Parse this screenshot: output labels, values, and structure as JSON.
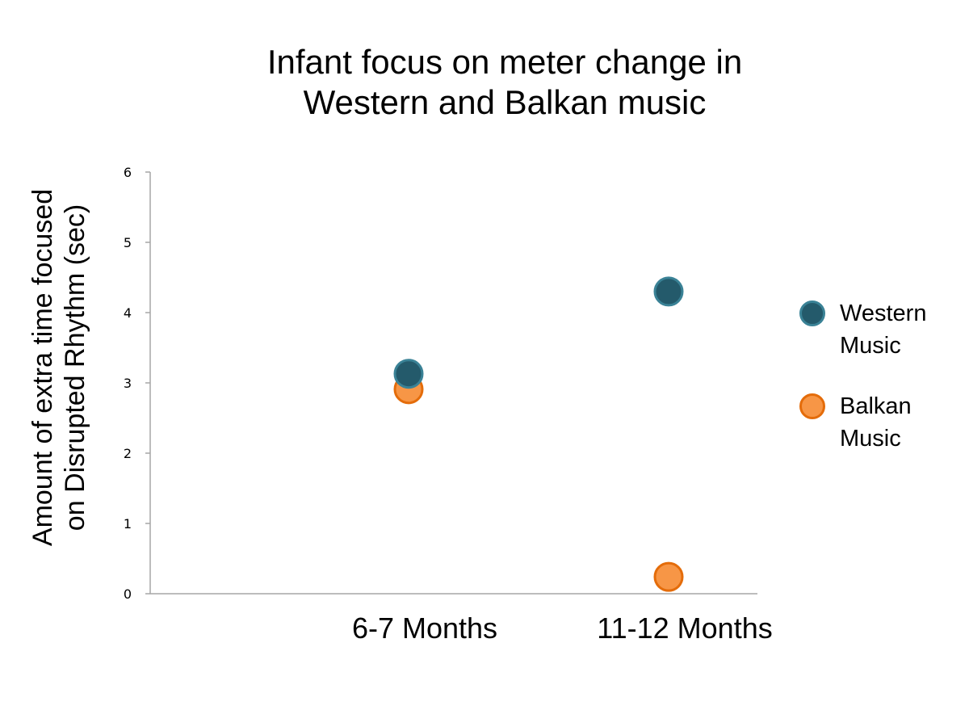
{
  "chart_data": {
    "type": "scatter",
    "title": "Infant focus on meter change in Western and Balkan music",
    "title_lines": [
      "Infant focus on meter change in",
      "Western and Balkan music"
    ],
    "xlabel": "",
    "ylabel": "Amount of extra time focused on Disrupted Rhythm (sec)",
    "ylabel_lines": [
      "Amount of extra time focused",
      "on Disrupted Rhythm (sec)"
    ],
    "categories": [
      "6-7 Months",
      "11-12 Months"
    ],
    "series": [
      {
        "name": "Western Music",
        "label_lines": [
          "Western",
          "Music"
        ],
        "color": "#245a6b",
        "edge": "#3a8296",
        "values": [
          3.13,
          4.3
        ]
      },
      {
        "name": "Balkan Music",
        "label_lines": [
          "Balkan",
          "Music"
        ],
        "color": "#f79646",
        "edge": "#e46c0a",
        "values": [
          2.91,
          0.24
        ]
      }
    ],
    "yticks": [
      "0",
      "1",
      "2",
      "3",
      "4",
      "5",
      "6"
    ],
    "ylim": [
      0,
      6
    ],
    "grid": false,
    "legend_position": "right"
  }
}
